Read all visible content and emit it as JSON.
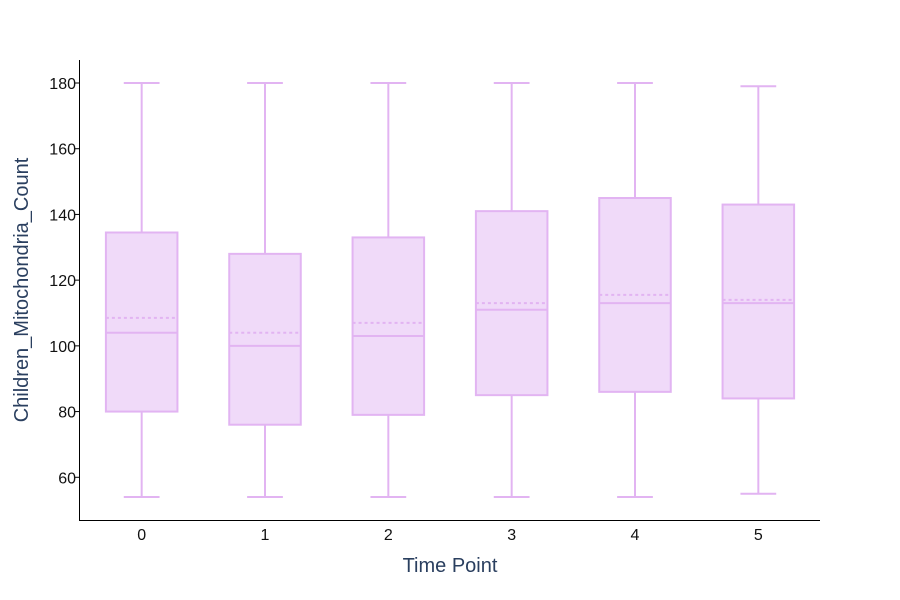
{
  "chart_data": {
    "type": "box",
    "title": "",
    "xlabel": "Time Point",
    "ylabel": "Children_Mitochondria_Count",
    "ylim": [
      47,
      187
    ],
    "yticks": [
      60,
      80,
      100,
      120,
      140,
      160,
      180
    ],
    "grid": false,
    "box_color": "#e2b4f2",
    "box_fill": "#f0daf9",
    "categories": [
      "0",
      "1",
      "2",
      "3",
      "4",
      "5"
    ],
    "boxes": [
      {
        "x": "0",
        "min": 54,
        "q1": 80,
        "median": 104,
        "mean": 108.5,
        "q3": 134.5,
        "max": 180
      },
      {
        "x": "1",
        "min": 54,
        "q1": 76,
        "median": 100,
        "mean": 104,
        "q3": 128,
        "max": 180
      },
      {
        "x": "2",
        "min": 54,
        "q1": 79,
        "median": 103,
        "mean": 107,
        "q3": 133,
        "max": 180
      },
      {
        "x": "3",
        "min": 54,
        "q1": 85,
        "median": 111,
        "mean": 113,
        "q3": 141,
        "max": 180
      },
      {
        "x": "4",
        "min": 54,
        "q1": 86,
        "median": 113,
        "mean": 115.5,
        "q3": 145,
        "max": 180
      },
      {
        "x": "5",
        "min": 55,
        "q1": 84,
        "median": 113,
        "mean": 114,
        "q3": 143,
        "max": 179
      }
    ]
  }
}
